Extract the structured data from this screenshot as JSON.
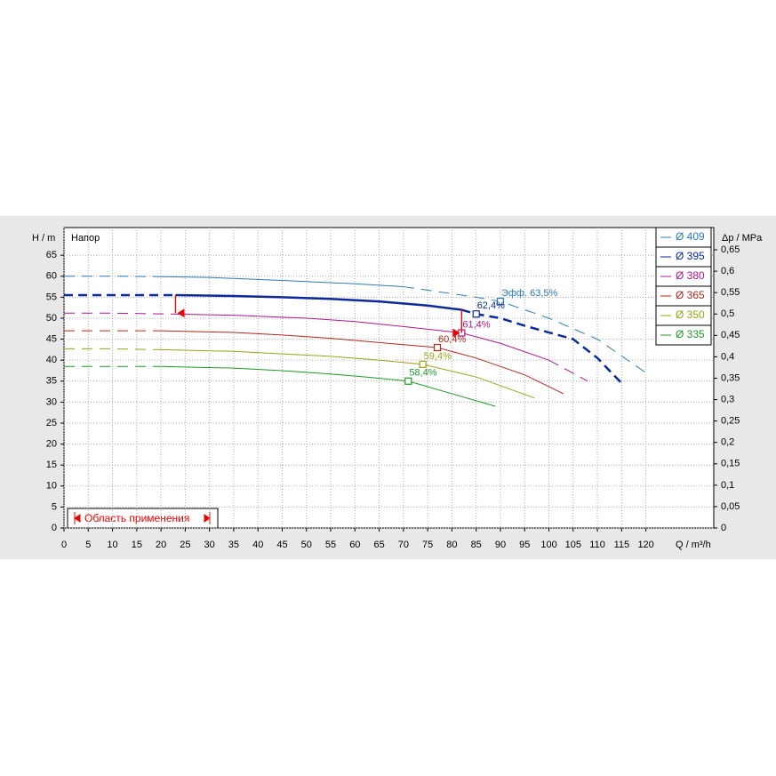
{
  "chart_data": {
    "type": "line",
    "y_label_left": "H / m",
    "y_label_title": "Напор",
    "y2_label": "Δp / MPa",
    "x_label": "Q / m³/h",
    "range_label": "Область применения",
    "xlim": [
      0,
      134
    ],
    "ylim": [
      0,
      71.6
    ],
    "y2lim": [
      0,
      0.702
    ],
    "grid": true,
    "legend": "upper right",
    "xticks": [
      0,
      5,
      10,
      15,
      20,
      25,
      30,
      35,
      40,
      45,
      50,
      55,
      60,
      65,
      70,
      75,
      80,
      85,
      90,
      95,
      100,
      105,
      110,
      115,
      120
    ],
    "yticks": [
      0,
      5,
      10,
      15,
      20,
      25,
      30,
      35,
      40,
      45,
      50,
      55,
      60,
      65
    ],
    "y2ticks": [
      0,
      {
        "value": 0.05,
        "label": "0,05"
      },
      {
        "value": 0.1,
        "label": "0,1"
      },
      {
        "value": 0.15,
        "label": "0,15"
      },
      {
        "value": 0.2,
        "label": "0,2"
      },
      {
        "value": 0.25,
        "label": "0,25"
      },
      {
        "value": 0.3,
        "label": "0,3"
      },
      {
        "value": 0.35,
        "label": "0,35"
      },
      {
        "value": 0.4,
        "label": "0,4"
      },
      {
        "value": 0.45,
        "label": "0,45"
      },
      {
        "value": 0.5,
        "label": "0,5"
      },
      {
        "value": 0.55,
        "label": "0,55"
      },
      {
        "value": 0.6,
        "label": "0,6"
      },
      {
        "value": 0.65,
        "label": "0,65"
      }
    ],
    "series": [
      {
        "name": "Ø 409",
        "color": "#2b7bb9",
        "width": 1,
        "solid_x": [
          20,
          70
        ],
        "x": [
          0,
          10,
          20,
          30,
          45,
          60,
          70,
          85,
          90,
          100,
          110,
          120
        ],
        "values": [
          60,
          60,
          59.9,
          59.7,
          59,
          58.2,
          57.5,
          55,
          54,
          50,
          45,
          37
        ],
        "best_x": 90,
        "best_y": 54,
        "best_label": "Эфф.  63,5%"
      },
      {
        "name": "Ø 395",
        "color": "#0a2a9c",
        "width": 2.5,
        "solid_x": [
          23,
          82
        ],
        "x": [
          0,
          10,
          23,
          35,
          45,
          55,
          65,
          75,
          82,
          85,
          90,
          95,
          105,
          110,
          115
        ],
        "values": [
          55.5,
          55.5,
          55.5,
          55.3,
          55,
          54.6,
          54,
          53,
          52,
          51,
          50,
          48.2,
          45,
          40.5,
          34.5
        ],
        "best_x": 85,
        "best_y": 51,
        "best_label": "62,4%"
      },
      {
        "name": "Ø 380",
        "color": "#b0148c",
        "width": 1,
        "solid_x": [
          22,
          100
        ],
        "x": [
          0,
          10,
          22,
          35,
          50,
          60,
          70,
          82,
          90,
          100,
          104,
          108
        ],
        "values": [
          51.2,
          51.2,
          51,
          50.7,
          50,
          49.2,
          48,
          46.5,
          44,
          40,
          37.5,
          35
        ],
        "best_x": 82,
        "best_y": 46.5,
        "best_label": "61,4%"
      },
      {
        "name": "Ø 365",
        "color": "#b02a1a",
        "width": 1,
        "solid_x": [
          20,
          103
        ],
        "x": [
          0,
          10,
          20,
          35,
          45,
          55,
          65,
          77,
          85,
          95,
          103
        ],
        "values": [
          47,
          47,
          47,
          46.6,
          46,
          45.2,
          44.2,
          43,
          40.5,
          36.5,
          32
        ],
        "best_x": 77,
        "best_y": 43,
        "best_label": "60,4%"
      },
      {
        "name": "Ø 350",
        "color": "#9aa31a",
        "width": 1,
        "solid_x": [
          20,
          97
        ],
        "x": [
          0,
          10,
          20,
          35,
          45,
          55,
          65,
          74,
          85,
          97
        ],
        "values": [
          42.7,
          42.7,
          42.5,
          42.1,
          41.5,
          40.9,
          40,
          39,
          36,
          31
        ],
        "best_x": 74,
        "best_y": 39,
        "best_label": "59,4%"
      },
      {
        "name": "Ø 335",
        "color": "#1d9a2a",
        "width": 1,
        "solid_x": [
          20,
          89
        ],
        "x": [
          0,
          10,
          20,
          35,
          45,
          55,
          63,
          71,
          80,
          89
        ],
        "values": [
          38.5,
          38.5,
          38.5,
          38.1,
          37.5,
          36.7,
          35.9,
          35,
          32,
          29
        ],
        "best_x": 71,
        "best_y": 35,
        "best_label": "58,4%"
      }
    ],
    "range_lines": [
      {
        "x": 23,
        "y_top": 55.5,
        "y_bottom": 51.2
      },
      {
        "x": 82,
        "y_top": 52,
        "y_bottom": 46.5
      }
    ]
  }
}
